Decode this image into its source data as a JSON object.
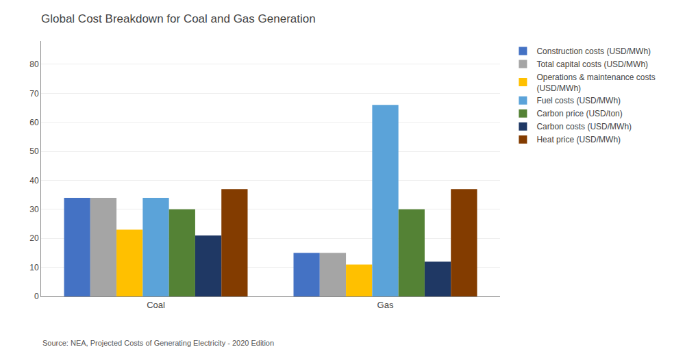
{
  "chart_data": {
    "type": "bar",
    "title": "Global Cost Breakdown for Coal and Gas Generation",
    "categories": [
      "Coal",
      "Gas"
    ],
    "series": [
      {
        "name": "Construction costs (USD/MWh)",
        "color": "#4472C4",
        "values": [
          34,
          15
        ]
      },
      {
        "name": "Total capital costs (USD/MWh)",
        "color": "#A5A5A5",
        "values": [
          34,
          15
        ]
      },
      {
        "name": "Operations & maintenance costs\n(USD/MWh)",
        "color": "#FFC000",
        "values": [
          23,
          11
        ]
      },
      {
        "name": "Fuel costs (USD/MWh)",
        "color": "#5BA3D9",
        "values": [
          34,
          66
        ]
      },
      {
        "name": "Carbon price (USD/ton)",
        "color": "#548235",
        "values": [
          30,
          30
        ]
      },
      {
        "name": "Carbon costs (USD/MWh)",
        "color": "#1F3864",
        "values": [
          21,
          12
        ]
      },
      {
        "name": "Heat price (USD/MWh)",
        "color": "#833C00",
        "values": [
          37,
          37
        ]
      }
    ],
    "ylim": [
      0,
      88
    ],
    "yticks": [
      0,
      10,
      20,
      30,
      40,
      50,
      60,
      70,
      80
    ],
    "grid": true,
    "legend": "right",
    "annotations": [
      "Source: NEA, Projected Costs of Generating Electricity - 2020 Edition"
    ]
  }
}
